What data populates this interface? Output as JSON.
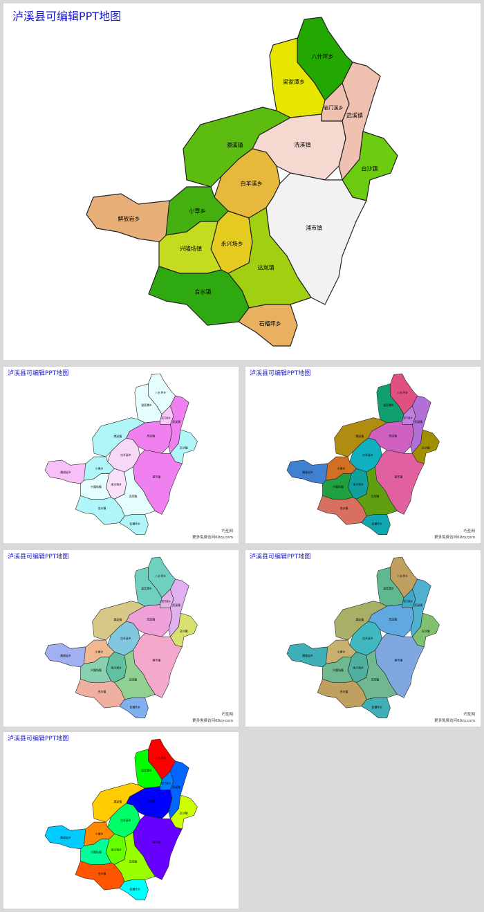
{
  "regions": [
    "八什坪乡",
    "梁家潭乡",
    "岩门溪乡",
    "武溪镇",
    "洗溪镇",
    "白沙镇",
    "潭溪镇",
    "白羊溪乡",
    "浦市镇",
    "小章乡",
    "解放岩乡",
    "永兴场乡",
    "兴隆场镇",
    "达岚镇",
    "合水镇",
    "石榴坪乡"
  ],
  "slides": [
    {
      "title": "泸溪县可编辑PPT地图",
      "colors": [
        "#22a800",
        "#e6e600",
        "#f0c0b0",
        "#f0c0b0",
        "#f5d8d0",
        "#6ccc10",
        "#5cbc10",
        "#e6b83c",
        "#f2f2f2",
        "#44b010",
        "#e8b078",
        "#e6cc20",
        "#c4dc20",
        "#a0d010",
        "#2eaa10",
        "#e8b060"
      ]
    },
    {
      "title": "泸溪县可编辑PPT地图",
      "colors": [
        "#e6fdfd",
        "#e6fdfd",
        "#f8c8f8",
        "#f080f0",
        "#f080f0",
        "#b0f5f8",
        "#b0f5f8",
        "#f8d8f8",
        "#f080f0",
        "#b0f5f8",
        "#f8c0f8",
        "#f8e0f8",
        "#e6fdfd",
        "#e6fdfd",
        "#b0f5f8",
        "#b0f5f8"
      ],
      "footer": [
        "巧圣网",
        "更多免费访问69zy.com"
      ]
    },
    {
      "title": "泸溪县可编辑PPT地图",
      "colors": [
        "#e05080",
        "#10a070",
        "#c080e0",
        "#b070d8",
        "#d060c0",
        "#a09000",
        "#b08c10",
        "#10b0c0",
        "#e060a0",
        "#d07020",
        "#4080d0",
        "#10a0a0",
        "#20a040",
        "#60a010",
        "#d87060",
        "#10a8b0"
      ],
      "footer": [
        "巧圣网",
        "更多免费访问69zy.com"
      ]
    },
    {
      "title": "泸溪县可编辑PPT地图",
      "colors": [
        "#70d0c0",
        "#70d0c0",
        "#e8b0e8",
        "#e0b0f0",
        "#f0a0d8",
        "#d8e070",
        "#d8c888",
        "#80c8e0",
        "#f4a8cc",
        "#f0b890",
        "#a0b0f0",
        "#60c0a0",
        "#88d0b0",
        "#90d090",
        "#f0b0a0",
        "#80b0f0"
      ],
      "footer": [
        "巧圣网",
        "更多免费访问69zy.com"
      ]
    },
    {
      "title": "泸溪县可编辑PPT地图",
      "colors": [
        "#c0a060",
        "#60b890",
        "#40a8c8",
        "#50b0d0",
        "#60a8e0",
        "#80c070",
        "#a8b068",
        "#40b8c0",
        "#80a8e0",
        "#c8b070",
        "#40b0b8",
        "#50b0a0",
        "#70b890",
        "#70b890",
        "#c0a060",
        "#40b0b8"
      ],
      "footer": [
        "巧圣网",
        "更多免费访问69zy.com"
      ]
    },
    {
      "title": "泸溪县可编辑PPT地图",
      "colors": [
        "#ff0000",
        "#00ff00",
        "#0080ff",
        "#0066ff",
        "#0000ff",
        "#ccff00",
        "#ffcc00",
        "#00ff66",
        "#6600ff",
        "#ff8800",
        "#00ccff",
        "#66ff00",
        "#00ff99",
        "#99ff00",
        "#ff5500",
        "#00ffff"
      ]
    }
  ]
}
